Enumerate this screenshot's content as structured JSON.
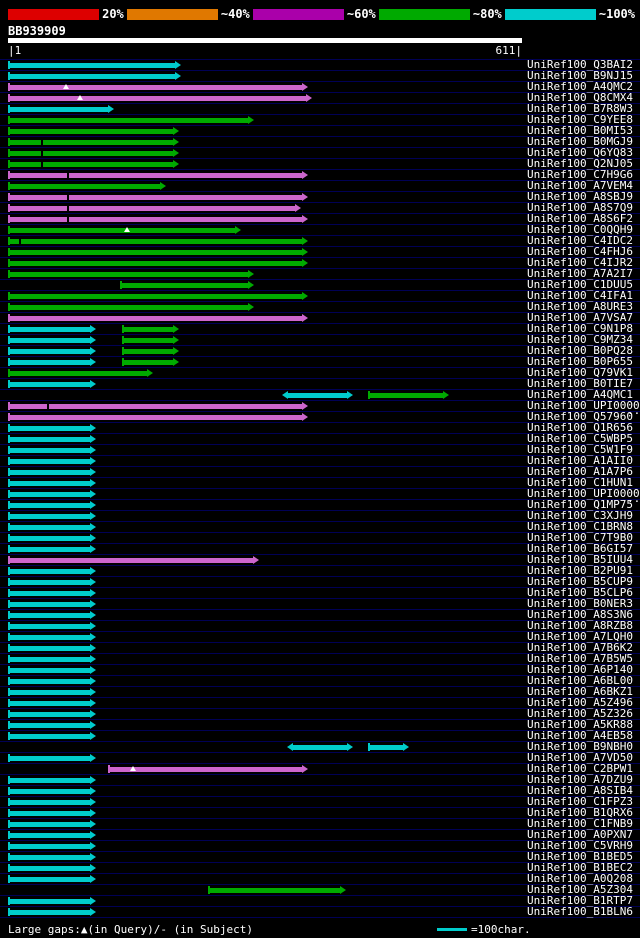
{
  "scale": {
    "segments": [
      {
        "color": "#dd0000",
        "label": "20%"
      },
      {
        "color": "#e07800",
        "label": "~40%"
      },
      {
        "color": "#aa00aa",
        "label": "~60%"
      },
      {
        "color": "#00aa00",
        "label": "~80%"
      },
      {
        "color": "#00cccc",
        "label": "~100%"
      }
    ]
  },
  "query": {
    "name": "BB939909",
    "ruler_left": "|1",
    "ruler_right": "611|"
  },
  "legend": {
    "gaps": "Large gaps:▲(in Query)/- (in Subject)",
    "unit": "=100char.",
    "line_color": "#00cccc"
  },
  "colors": {
    "cyan": "#00cccc",
    "green": "#00aa00",
    "magenta": "#cc66cc",
    "row_line": "#000055"
  },
  "chart_data": {
    "type": "bar",
    "subtype": "blast-alignment-graphic-overview (horizontal interval bars)",
    "title": "BB939909",
    "xlabel": "query position (residues)",
    "x_range": [
      1,
      611
    ],
    "query_length": 611,
    "identity_scale": [
      {
        "label": "20%",
        "color": "#dd0000"
      },
      {
        "label": "~40%",
        "color": "#e07800"
      },
      {
        "label": "~60%",
        "color": "#aa00aa"
      },
      {
        "label": "~80%",
        "color": "#00aa00"
      },
      {
        "label": "~100%",
        "color": "#00cccc"
      }
    ],
    "rows": [
      {
        "id": "UniRef100_Q3BAI2",
        "segments": [
          {
            "from": 1,
            "to": 206,
            "color": "cyan"
          }
        ]
      },
      {
        "id": "UniRef100_B9NJ15",
        "segments": [
          {
            "from": 1,
            "to": 206,
            "color": "cyan"
          }
        ]
      },
      {
        "id": "UniRef100_A4QMC2",
        "segments": [
          {
            "from": 1,
            "to": 357,
            "color": "magenta"
          }
        ],
        "markers": [
          {
            "pos": 70,
            "type": "query_gap"
          }
        ]
      },
      {
        "id": "UniRef100_Q8CMX4",
        "segments": [
          {
            "from": 1,
            "to": 361,
            "color": "magenta"
          }
        ],
        "markers": [
          {
            "pos": 87,
            "type": "query_gap"
          }
        ]
      },
      {
        "id": "UniRef100_B7R8W3",
        "segments": [
          {
            "from": 1,
            "to": 126,
            "color": "cyan"
          }
        ]
      },
      {
        "id": "UniRef100_C9YEE8",
        "segments": [
          {
            "from": 1,
            "to": 292,
            "color": "green"
          }
        ]
      },
      {
        "id": "UniRef100_B0MI53",
        "segments": [
          {
            "from": 1,
            "to": 203,
            "color": "green"
          }
        ]
      },
      {
        "id": "UniRef100_B0MGJ9",
        "segments": [
          {
            "from": 1,
            "to": 203,
            "color": "green"
          }
        ],
        "markers": [
          {
            "pos": 41,
            "type": "subject_gap"
          }
        ]
      },
      {
        "id": "UniRef100_Q6YQ83",
        "segments": [
          {
            "from": 1,
            "to": 203,
            "color": "green"
          }
        ],
        "markers": [
          {
            "pos": 41,
            "type": "subject_gap"
          }
        ]
      },
      {
        "id": "UniRef100_Q2NJ05",
        "segments": [
          {
            "from": 1,
            "to": 203,
            "color": "green"
          }
        ],
        "markers": [
          {
            "pos": 41,
            "type": "subject_gap"
          }
        ]
      },
      {
        "id": "UniRef100_C7H9G6",
        "segments": [
          {
            "from": 1,
            "to": 357,
            "color": "magenta"
          }
        ],
        "markers": [
          {
            "pos": 72,
            "type": "subject_gap"
          }
        ]
      },
      {
        "id": "UniRef100_A7VEM4",
        "segments": [
          {
            "from": 1,
            "to": 188,
            "color": "green"
          }
        ]
      },
      {
        "id": "UniRef100_A8SBJ9",
        "segments": [
          {
            "from": 1,
            "to": 357,
            "color": "magenta"
          }
        ],
        "markers": [
          {
            "pos": 72,
            "type": "subject_gap"
          }
        ]
      },
      {
        "id": "UniRef100_A8S7Q9",
        "segments": [
          {
            "from": 1,
            "to": 348,
            "color": "magenta"
          }
        ],
        "markers": [
          {
            "pos": 72,
            "type": "subject_gap"
          }
        ]
      },
      {
        "id": "UniRef100_A8S6F2",
        "segments": [
          {
            "from": 1,
            "to": 357,
            "color": "magenta"
          }
        ],
        "markers": [
          {
            "pos": 72,
            "type": "subject_gap"
          }
        ]
      },
      {
        "id": "UniRef100_C0QQH9",
        "segments": [
          {
            "from": 1,
            "to": 277,
            "color": "green"
          }
        ],
        "markers": [
          {
            "pos": 142,
            "type": "query_gap"
          }
        ]
      },
      {
        "id": "UniRef100_C4IDC2",
        "segments": [
          {
            "from": 1,
            "to": 357,
            "color": "green"
          }
        ],
        "markers": [
          {
            "pos": 15,
            "type": "subject_gap"
          }
        ]
      },
      {
        "id": "UniRef100_C4FHJ6",
        "segments": [
          {
            "from": 1,
            "to": 357,
            "color": "green"
          }
        ]
      },
      {
        "id": "UniRef100_C4IJR2",
        "segments": [
          {
            "from": 1,
            "to": 357,
            "color": "green"
          }
        ]
      },
      {
        "id": "UniRef100_A7A2I7",
        "segments": [
          {
            "from": 1,
            "to": 292,
            "color": "green"
          }
        ]
      },
      {
        "id": "UniRef100_C1DUU5",
        "segments": [
          {
            "from": 134,
            "to": 292,
            "color": "green"
          }
        ]
      },
      {
        "id": "UniRef100_C4IFA1",
        "segments": [
          {
            "from": 1,
            "to": 357,
            "color": "green"
          }
        ]
      },
      {
        "id": "UniRef100_A8URE3",
        "segments": [
          {
            "from": 1,
            "to": 292,
            "color": "green"
          }
        ]
      },
      {
        "id": "UniRef100_A7VSA7",
        "segments": [
          {
            "from": 1,
            "to": 357,
            "color": "magenta"
          }
        ]
      },
      {
        "id": "UniRef100_C9N1P8",
        "segments": [
          {
            "from": 1,
            "to": 104,
            "color": "cyan"
          },
          {
            "from": 137,
            "to": 203,
            "color": "green"
          }
        ]
      },
      {
        "id": "UniRef100_C9MZ34",
        "segments": [
          {
            "from": 1,
            "to": 104,
            "color": "cyan"
          },
          {
            "from": 137,
            "to": 203,
            "color": "green"
          }
        ]
      },
      {
        "id": "UniRef100_B0PQ28",
        "segments": [
          {
            "from": 1,
            "to": 104,
            "color": "cyan"
          },
          {
            "from": 137,
            "to": 203,
            "color": "green"
          }
        ]
      },
      {
        "id": "UniRef100_B0P655",
        "segments": [
          {
            "from": 1,
            "to": 104,
            "color": "cyan"
          },
          {
            "from": 137,
            "to": 203,
            "color": "green"
          }
        ]
      },
      {
        "id": "UniRef100_Q79VK1",
        "segments": [
          {
            "from": 1,
            "to": 172,
            "color": "green"
          }
        ]
      },
      {
        "id": "UniRef100_B0TIE7",
        "segments": [
          {
            "from": 1,
            "to": 104,
            "color": "cyan"
          }
        ]
      },
      {
        "id": "UniRef100_A4QMC1",
        "segments": [
          {
            "from": 328,
            "to": 410,
            "color": "cyan",
            "arrow_left": true
          },
          {
            "from": 429,
            "to": 524,
            "color": "green"
          }
        ]
      },
      {
        "id": "UniRef100_UPI0000",
        "suffix": "..",
        "segments": [
          {
            "from": 1,
            "to": 357,
            "color": "magenta"
          }
        ],
        "markers": [
          {
            "pos": 49,
            "type": "subject_gap"
          }
        ]
      },
      {
        "id": "UniRef100_Q57960",
        "segments": [
          {
            "from": 1,
            "to": 357,
            "color": "magenta"
          }
        ]
      },
      {
        "id": "UniRef100_Q1R656",
        "segments": [
          {
            "from": 1,
            "to": 104,
            "color": "cyan"
          }
        ]
      },
      {
        "id": "UniRef100_C5WBP5",
        "segments": [
          {
            "from": 1,
            "to": 104,
            "color": "cyan"
          }
        ]
      },
      {
        "id": "UniRef100_C5W1F9",
        "segments": [
          {
            "from": 1,
            "to": 104,
            "color": "cyan"
          }
        ]
      },
      {
        "id": "UniRef100_A1AII0",
        "segments": [
          {
            "from": 1,
            "to": 104,
            "color": "cyan"
          }
        ]
      },
      {
        "id": "UniRef100_A1A7P6",
        "segments": [
          {
            "from": 1,
            "to": 104,
            "color": "cyan"
          }
        ]
      },
      {
        "id": "UniRef100_C1HUN1",
        "segments": [
          {
            "from": 1,
            "to": 104,
            "color": "cyan"
          }
        ]
      },
      {
        "id": "UniRef100_UPI0000",
        "suffix": "..",
        "segments": [
          {
            "from": 1,
            "to": 104,
            "color": "cyan"
          }
        ]
      },
      {
        "id": "UniRef100_Q1MP75",
        "segments": [
          {
            "from": 1,
            "to": 104,
            "color": "cyan"
          }
        ]
      },
      {
        "id": "UniRef100_C3XJH9",
        "segments": [
          {
            "from": 1,
            "to": 104,
            "color": "cyan"
          }
        ]
      },
      {
        "id": "UniRef100_C1BRN8",
        "segments": [
          {
            "from": 1,
            "to": 104,
            "color": "cyan"
          }
        ]
      },
      {
        "id": "UniRef100_C7T9B0",
        "segments": [
          {
            "from": 1,
            "to": 104,
            "color": "cyan"
          }
        ]
      },
      {
        "id": "UniRef100_B6GI57",
        "segments": [
          {
            "from": 1,
            "to": 104,
            "color": "cyan"
          }
        ]
      },
      {
        "id": "UniRef100_B5IUU4",
        "segments": [
          {
            "from": 1,
            "to": 298,
            "color": "magenta"
          }
        ]
      },
      {
        "id": "UniRef100_B2PU91",
        "segments": [
          {
            "from": 1,
            "to": 104,
            "color": "cyan"
          }
        ]
      },
      {
        "id": "UniRef100_B5CUP9",
        "segments": [
          {
            "from": 1,
            "to": 104,
            "color": "cyan"
          }
        ]
      },
      {
        "id": "UniRef100_B5CLP6",
        "segments": [
          {
            "from": 1,
            "to": 104,
            "color": "cyan"
          }
        ]
      },
      {
        "id": "UniRef100_B0NER3",
        "segments": [
          {
            "from": 1,
            "to": 104,
            "color": "cyan"
          }
        ]
      },
      {
        "id": "UniRef100_A8S3N6",
        "segments": [
          {
            "from": 1,
            "to": 104,
            "color": "cyan"
          }
        ]
      },
      {
        "id": "UniRef100_A8RZB8",
        "segments": [
          {
            "from": 1,
            "to": 104,
            "color": "cyan"
          }
        ]
      },
      {
        "id": "UniRef100_A7LQH0",
        "segments": [
          {
            "from": 1,
            "to": 104,
            "color": "cyan"
          }
        ]
      },
      {
        "id": "UniRef100_A7B6K2",
        "segments": [
          {
            "from": 1,
            "to": 104,
            "color": "cyan"
          }
        ]
      },
      {
        "id": "UniRef100_A7B5W5",
        "segments": [
          {
            "from": 1,
            "to": 104,
            "color": "cyan"
          }
        ]
      },
      {
        "id": "UniRef100_A6P140",
        "segments": [
          {
            "from": 1,
            "to": 104,
            "color": "cyan"
          }
        ]
      },
      {
        "id": "UniRef100_A6BL00",
        "segments": [
          {
            "from": 1,
            "to": 104,
            "color": "cyan"
          }
        ]
      },
      {
        "id": "UniRef100_A6BKZ1",
        "segments": [
          {
            "from": 1,
            "to": 104,
            "color": "cyan"
          }
        ]
      },
      {
        "id": "UniRef100_A5Z496",
        "segments": [
          {
            "from": 1,
            "to": 104,
            "color": "cyan"
          }
        ]
      },
      {
        "id": "UniRef100_A5Z326",
        "segments": [
          {
            "from": 1,
            "to": 104,
            "color": "cyan"
          }
        ]
      },
      {
        "id": "UniRef100_A5KR88",
        "segments": [
          {
            "from": 1,
            "to": 104,
            "color": "cyan"
          }
        ]
      },
      {
        "id": "UniRef100_A4EB58",
        "segments": [
          {
            "from": 1,
            "to": 104,
            "color": "cyan"
          }
        ]
      },
      {
        "id": "UniRef100_B9NBH0",
        "segments": [
          {
            "from": 334,
            "to": 410,
            "color": "cyan",
            "arrow_left": true
          },
          {
            "from": 429,
            "to": 477,
            "color": "cyan"
          }
        ]
      },
      {
        "id": "UniRef100_A7VD50",
        "segments": [
          {
            "from": 1,
            "to": 104,
            "color": "cyan"
          }
        ]
      },
      {
        "id": "UniRef100_C2BPW1",
        "segments": [
          {
            "from": 120,
            "to": 357,
            "color": "magenta"
          }
        ],
        "markers": [
          {
            "pos": 150,
            "type": "query_gap"
          }
        ]
      },
      {
        "id": "UniRef100_A7DZU9",
        "segments": [
          {
            "from": 1,
            "to": 104,
            "color": "cyan"
          }
        ]
      },
      {
        "id": "UniRef100_A8SIB4",
        "segments": [
          {
            "from": 1,
            "to": 104,
            "color": "cyan"
          }
        ]
      },
      {
        "id": "UniRef100_C1FPZ3",
        "segments": [
          {
            "from": 1,
            "to": 104,
            "color": "cyan"
          }
        ]
      },
      {
        "id": "UniRef100_B1QRX6",
        "segments": [
          {
            "from": 1,
            "to": 104,
            "color": "cyan"
          }
        ]
      },
      {
        "id": "UniRef100_C1FNB9",
        "segments": [
          {
            "from": 1,
            "to": 104,
            "color": "cyan"
          }
        ]
      },
      {
        "id": "UniRef100_A0PXN7",
        "segments": [
          {
            "from": 1,
            "to": 104,
            "color": "cyan"
          }
        ]
      },
      {
        "id": "UniRef100_C5VRH9",
        "segments": [
          {
            "from": 1,
            "to": 104,
            "color": "cyan"
          }
        ]
      },
      {
        "id": "UniRef100_B1BED5",
        "segments": [
          {
            "from": 1,
            "to": 104,
            "color": "cyan"
          }
        ]
      },
      {
        "id": "UniRef100_B1BEC2",
        "segments": [
          {
            "from": 1,
            "to": 104,
            "color": "cyan"
          }
        ]
      },
      {
        "id": "UniRef100_A0Q208",
        "segments": [
          {
            "from": 1,
            "to": 104,
            "color": "cyan"
          }
        ]
      },
      {
        "id": "UniRef100_A5Z304",
        "segments": [
          {
            "from": 239,
            "to": 402,
            "color": "green"
          }
        ]
      },
      {
        "id": "UniRef100_B1RTP7",
        "segments": [
          {
            "from": 1,
            "to": 104,
            "color": "cyan"
          }
        ]
      },
      {
        "id": "UniRef100_B1BLN6",
        "segments": [
          {
            "from": 1,
            "to": 104,
            "color": "cyan"
          }
        ]
      }
    ]
  }
}
